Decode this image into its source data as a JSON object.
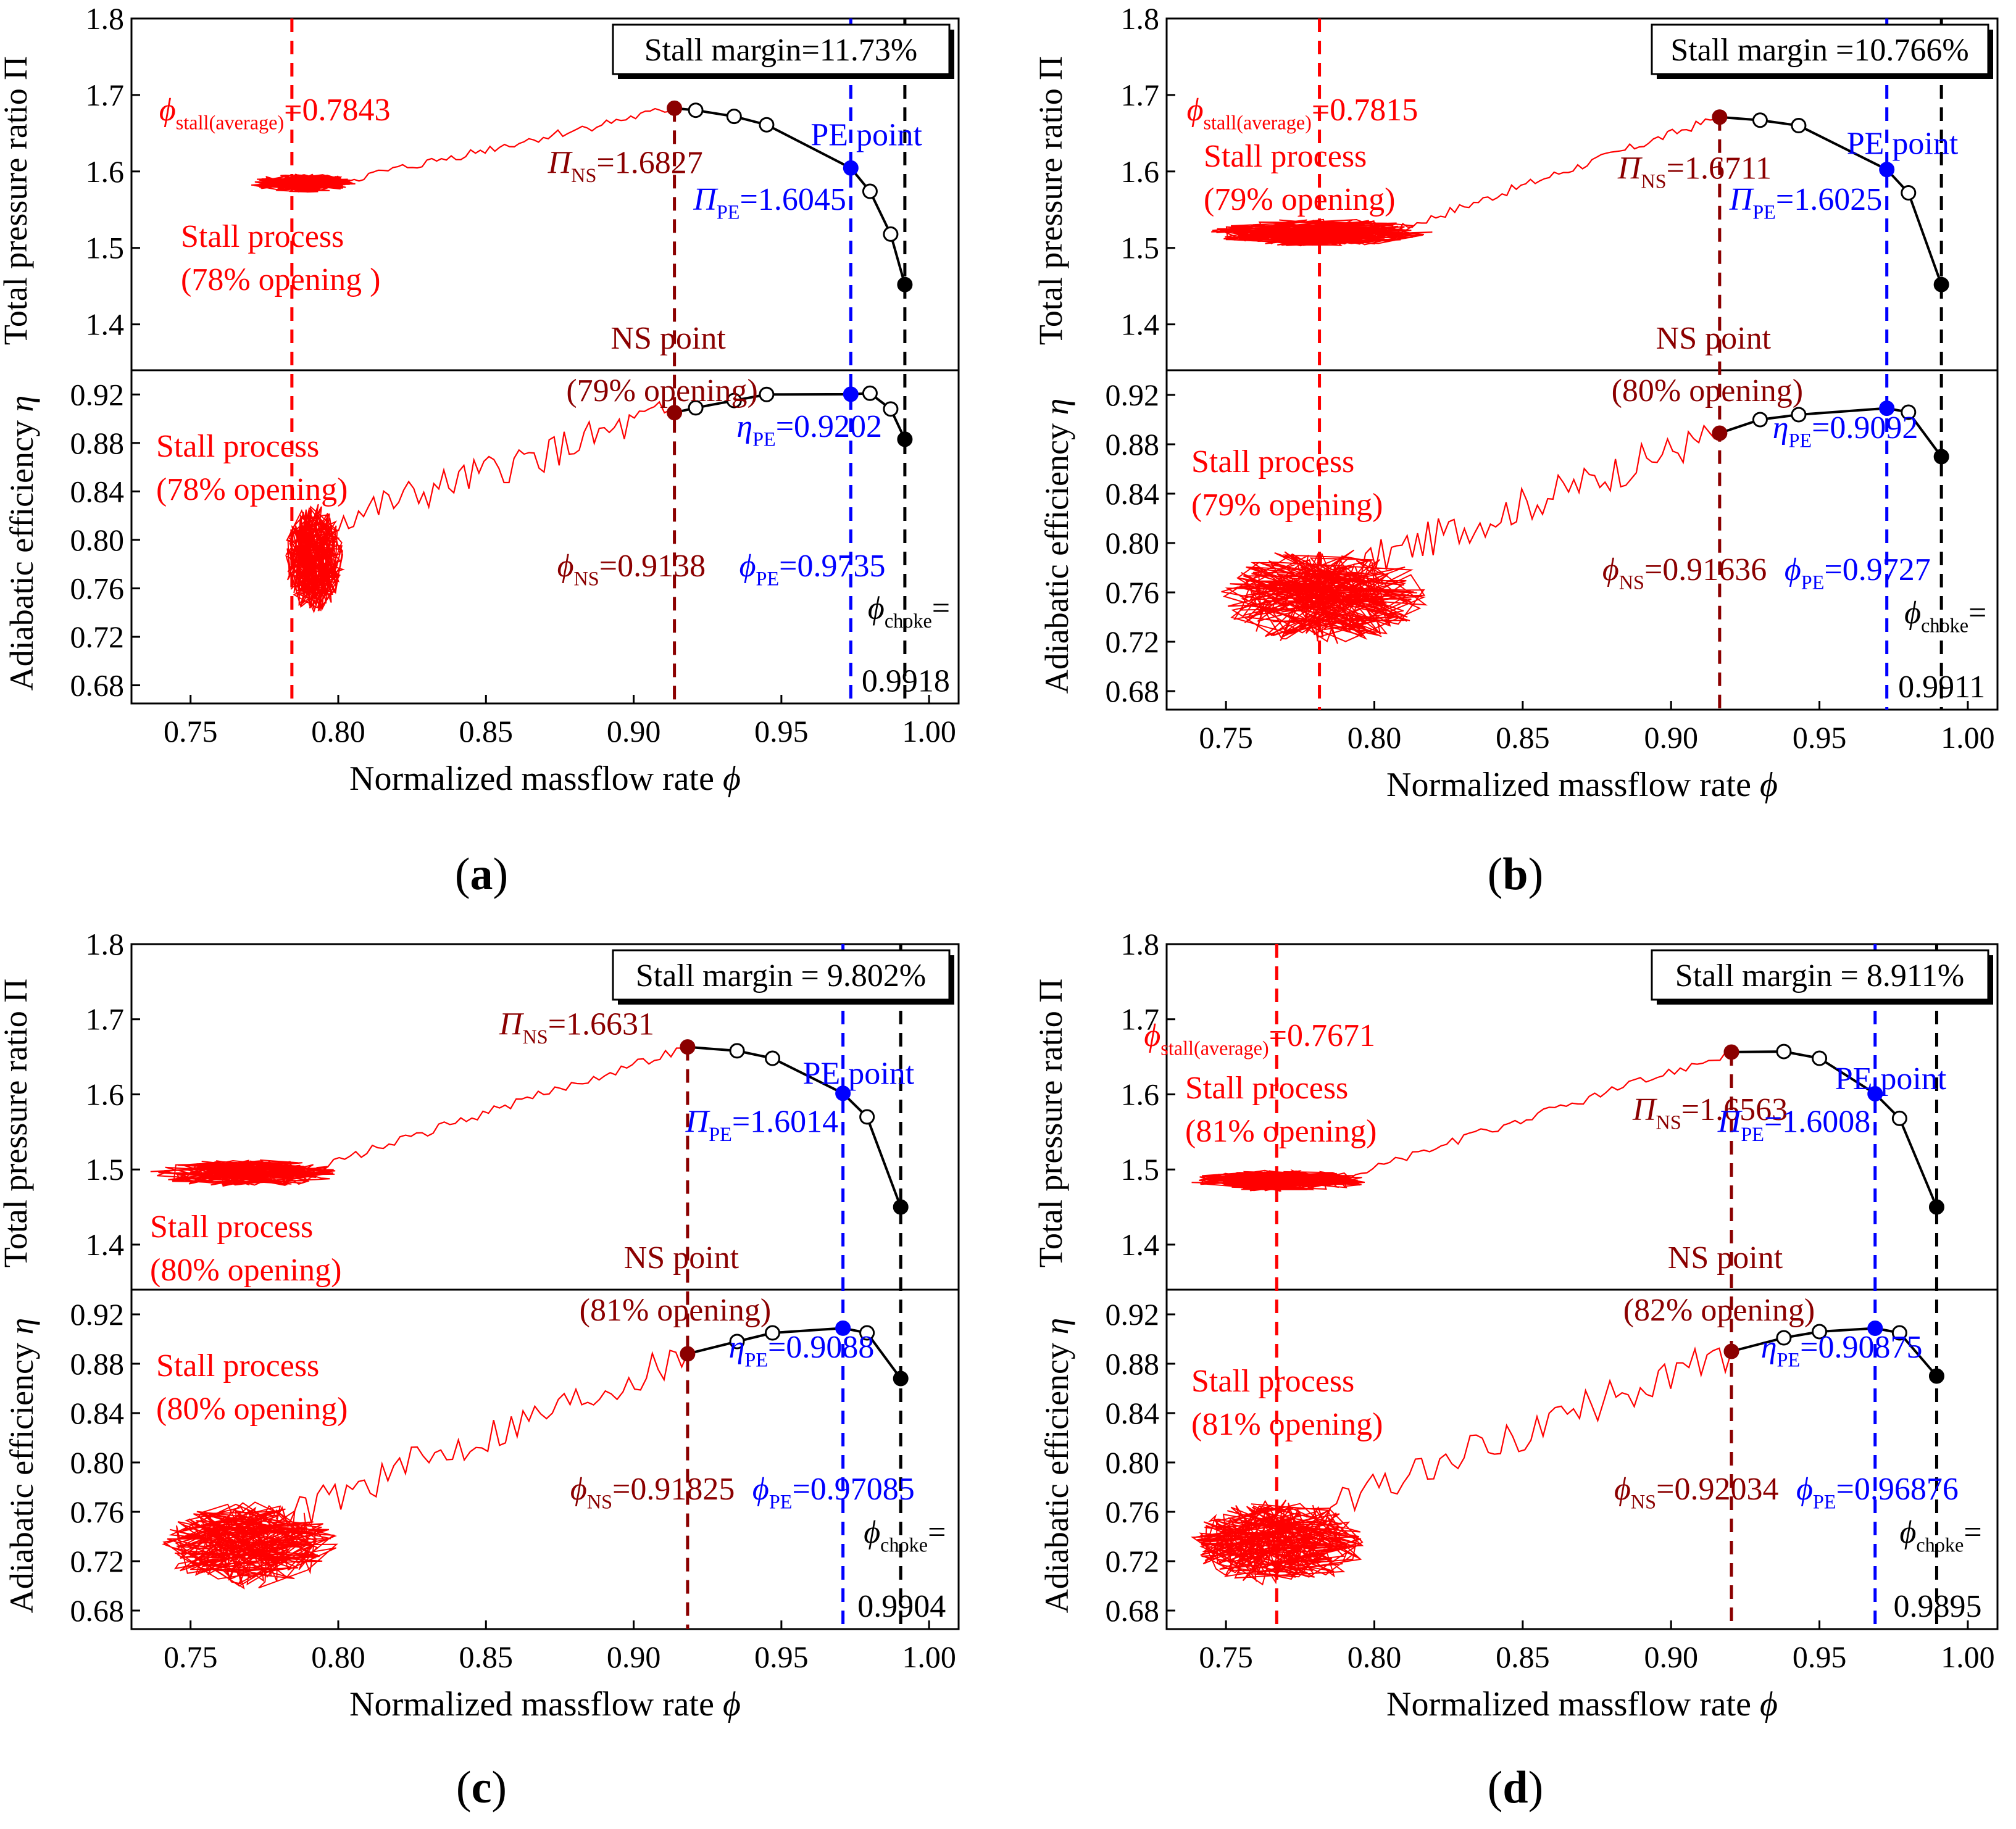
{
  "figure": {
    "captions": [
      "a",
      "b",
      "c",
      "d"
    ]
  },
  "colors": {
    "stall": "#ff0000",
    "ns": "#8b0000",
    "pe": "#0000ff",
    "curve": "#000000"
  },
  "chart_data": [
    {
      "id": "a",
      "type": "line",
      "xlabel": "Normalized massflow rate",
      "xlabel_symbol": "ϕ",
      "ylabel_top": "Total pressure ratio",
      "ylabel_top_symbol": "Π",
      "ylabel_bottom": "Adiabatic efficiency",
      "ylabel_bottom_symbol": "η",
      "xlim": [
        0.73,
        1.01
      ],
      "ylim_top": [
        1.34,
        1.8
      ],
      "ylim_bottom": [
        0.665,
        0.94
      ],
      "xticks": [
        "0.75",
        "0.80",
        "0.85",
        "0.90",
        "0.95",
        "1.00"
      ],
      "yticks_top": [
        "1.4",
        "1.5",
        "1.6",
        "1.7",
        "1.8"
      ],
      "yticks_bottom": [
        "0.68",
        "0.72",
        "0.76",
        "0.80",
        "0.84",
        "0.88",
        "0.92"
      ],
      "stall_margin": "Stall margin=11.73%",
      "pressure_curve": [
        [
          0.9138,
          1.6827
        ],
        [
          0.921,
          1.68
        ],
        [
          0.934,
          1.672
        ],
        [
          0.945,
          1.661
        ],
        [
          0.9735,
          1.6045
        ],
        [
          0.98,
          1.574
        ],
        [
          0.987,
          1.518
        ],
        [
          0.9918,
          1.452
        ]
      ],
      "efficiency_curve": [
        [
          0.9138,
          0.905
        ],
        [
          0.921,
          0.909
        ],
        [
          0.934,
          0.915
        ],
        [
          0.945,
          0.92
        ],
        [
          0.9735,
          0.9202
        ],
        [
          0.98,
          0.921
        ],
        [
          0.987,
          0.908
        ],
        [
          0.9918,
          0.883
        ]
      ],
      "stall_x": 0.7843,
      "ns_x": 0.9138,
      "pe_x": 0.9735,
      "choke_x": 0.9918,
      "phi_stall_label": "=0.7843",
      "pi_ns_label": "=1.6827",
      "pi_pe_label": "=1.6045",
      "eta_pe_label": "=0.9202",
      "phi_ns_label": "=0.9138",
      "phi_pe_label": "=0.9735",
      "phi_choke_label": "=",
      "choke_value": "0.9918",
      "ns_point": "NS point",
      "ns_opening": "(79% opening)",
      "pe_point": "PE point",
      "stall_text_top": [
        "Stall process",
        "(78% opening )"
      ],
      "stall_text_bottom": [
        "Stall process",
        "(78% opening)"
      ],
      "stall_top": {
        "center": [
          0.788,
          1.585
        ],
        "rx": 0.018,
        "ry": 0.012
      },
      "stall_bottom": {
        "center": [
          0.792,
          0.785
        ],
        "rx": 0.01,
        "ry": 0.045
      }
    },
    {
      "id": "b",
      "type": "line",
      "xlabel": "Normalized massflow rate",
      "xlabel_symbol": "ϕ",
      "ylabel_top": "Total pressure ratio",
      "ylabel_top_symbol": "Π",
      "ylabel_bottom": "Adiabatic efficiency",
      "ylabel_bottom_symbol": "η",
      "xlim": [
        0.73,
        1.01
      ],
      "ylim_top": [
        1.34,
        1.8
      ],
      "ylim_bottom": [
        0.665,
        0.94
      ],
      "xticks": [
        "0.75",
        "0.80",
        "0.85",
        "0.90",
        "0.95",
        "1.00"
      ],
      "yticks_top": [
        "1.4",
        "1.5",
        "1.6",
        "1.7",
        "1.8"
      ],
      "yticks_bottom": [
        "0.68",
        "0.72",
        "0.76",
        "0.80",
        "0.84",
        "0.88",
        "0.92"
      ],
      "stall_margin": "Stall margin =10.766%",
      "pressure_curve": [
        [
          0.91636,
          1.6711
        ],
        [
          0.93,
          1.667
        ],
        [
          0.943,
          1.66
        ],
        [
          0.9727,
          1.6025
        ],
        [
          0.98,
          1.572
        ],
        [
          0.9911,
          1.452
        ]
      ],
      "efficiency_curve": [
        [
          0.91636,
          0.889
        ],
        [
          0.93,
          0.9
        ],
        [
          0.943,
          0.904
        ],
        [
          0.9727,
          0.9092
        ],
        [
          0.98,
          0.906
        ],
        [
          0.9911,
          0.87
        ]
      ],
      "stall_x": 0.7815,
      "ns_x": 0.91636,
      "pe_x": 0.9727,
      "choke_x": 0.9911,
      "phi_stall_label": "=0.7815",
      "pi_ns_label": "=1.6711",
      "pi_pe_label": "=1.6025",
      "eta_pe_label": "=0.9092",
      "phi_ns_label": "=0.91636",
      "phi_pe_label": "=0.9727",
      "phi_choke_label": "=",
      "choke_value": "0.9911",
      "ns_point": "NS point",
      "ns_opening": "(80% opening)",
      "pe_point": "PE point",
      "stall_text_top": [
        "Stall process",
        "(79% opening)"
      ],
      "stall_text_bottom": [
        "Stall process",
        "(79% opening)"
      ],
      "stall_top": {
        "center": [
          0.782,
          1.52
        ],
        "rx": 0.038,
        "ry": 0.018
      },
      "stall_bottom": {
        "center": [
          0.783,
          0.757
        ],
        "rx": 0.035,
        "ry": 0.04
      }
    },
    {
      "id": "c",
      "type": "line",
      "xlabel": "Normalized massflow rate",
      "xlabel_symbol": "ϕ",
      "ylabel_top": "Total pressure ratio",
      "ylabel_top_symbol": "Π",
      "ylabel_bottom": "Adiabatic efficiency",
      "ylabel_bottom_symbol": "η",
      "xlim": [
        0.73,
        1.01
      ],
      "ylim_top": [
        1.34,
        1.8
      ],
      "ylim_bottom": [
        0.665,
        0.94
      ],
      "xticks": [
        "0.75",
        "0.80",
        "0.85",
        "0.90",
        "0.95",
        "1.00"
      ],
      "yticks_top": [
        "1.4",
        "1.5",
        "1.6",
        "1.7",
        "1.8"
      ],
      "yticks_bottom": [
        "0.68",
        "0.72",
        "0.76",
        "0.80",
        "0.84",
        "0.88",
        "0.92"
      ],
      "stall_margin": "Stall margin = 9.802%",
      "pressure_curve": [
        [
          0.91825,
          1.6631
        ],
        [
          0.935,
          1.658
        ],
        [
          0.947,
          1.648
        ],
        [
          0.97085,
          1.6014
        ],
        [
          0.979,
          1.57
        ],
        [
          0.9904,
          1.45
        ]
      ],
      "efficiency_curve": [
        [
          0.91825,
          0.888
        ],
        [
          0.935,
          0.898
        ],
        [
          0.947,
          0.905
        ],
        [
          0.97085,
          0.9088
        ],
        [
          0.979,
          0.905
        ],
        [
          0.9904,
          0.868
        ]
      ],
      "stall_x": null,
      "ns_x": 0.91825,
      "pe_x": 0.97085,
      "choke_x": 0.9904,
      "phi_stall_label": null,
      "pi_ns_label": "=1.6631",
      "pi_pe_label": "=1.6014",
      "eta_pe_label": "=0.9088",
      "phi_ns_label": "=0.91825",
      "phi_pe_label": "=0.97085",
      "phi_choke_label": "=",
      "choke_value": "0.9904",
      "ns_point": "NS point",
      "ns_opening": "(81% opening)",
      "pe_point": "PE point",
      "stall_text_top": [
        "Stall process",
        "(80% opening)"
      ],
      "stall_text_bottom": [
        "Stall process",
        "(80% opening)"
      ],
      "stall_top": {
        "center": [
          0.768,
          1.495
        ],
        "rx": 0.032,
        "ry": 0.018
      },
      "stall_bottom": {
        "center": [
          0.77,
          0.733
        ],
        "rx": 0.03,
        "ry": 0.035
      }
    },
    {
      "id": "d",
      "type": "line",
      "xlabel": "Normalized massflow rate",
      "xlabel_symbol": "ϕ",
      "ylabel_top": "Total pressure ratio",
      "ylabel_top_symbol": "Π",
      "ylabel_bottom": "Adiabatic efficiency",
      "ylabel_bottom_symbol": "η",
      "xlim": [
        0.73,
        1.01
      ],
      "ylim_top": [
        1.34,
        1.8
      ],
      "ylim_bottom": [
        0.665,
        0.94
      ],
      "xticks": [
        "0.75",
        "0.80",
        "0.85",
        "0.90",
        "0.95",
        "1.00"
      ],
      "yticks_top": [
        "1.4",
        "1.5",
        "1.6",
        "1.7",
        "1.8"
      ],
      "yticks_bottom": [
        "0.68",
        "0.72",
        "0.76",
        "0.80",
        "0.84",
        "0.88",
        "0.92"
      ],
      "stall_margin": "Stall margin = 8.911%",
      "pressure_curve": [
        [
          0.92034,
          1.6563
        ],
        [
          0.938,
          1.657
        ],
        [
          0.95,
          1.648
        ],
        [
          0.96876,
          1.6008
        ],
        [
          0.977,
          1.568
        ],
        [
          0.9895,
          1.45
        ]
      ],
      "efficiency_curve": [
        [
          0.92034,
          0.89
        ],
        [
          0.938,
          0.901
        ],
        [
          0.95,
          0.906
        ],
        [
          0.96876,
          0.90875
        ],
        [
          0.977,
          0.905
        ],
        [
          0.9895,
          0.87
        ]
      ],
      "stall_x": 0.7671,
      "ns_x": 0.92034,
      "pe_x": 0.96876,
      "choke_x": 0.9895,
      "phi_stall_label": "=0.7671",
      "pi_ns_label": "=1.6563",
      "pi_pe_label": "=1.6008",
      "eta_pe_label": "=0.90875",
      "phi_ns_label": "=0.92034",
      "phi_pe_label": "=0.96876",
      "phi_choke_label": "=",
      "choke_value": "0.9895",
      "ns_point": "NS point",
      "ns_opening": "(82% opening)",
      "pe_point": "PE point",
      "stall_text_top": [
        "Stall process",
        "(81% opening)"
      ],
      "stall_text_bottom": [
        "Stall process",
        "(81% opening)"
      ],
      "stall_top": {
        "center": [
          0.768,
          1.485
        ],
        "rx": 0.03,
        "ry": 0.014
      },
      "stall_bottom": {
        "center": [
          0.768,
          0.735
        ],
        "rx": 0.03,
        "ry": 0.035
      }
    }
  ]
}
